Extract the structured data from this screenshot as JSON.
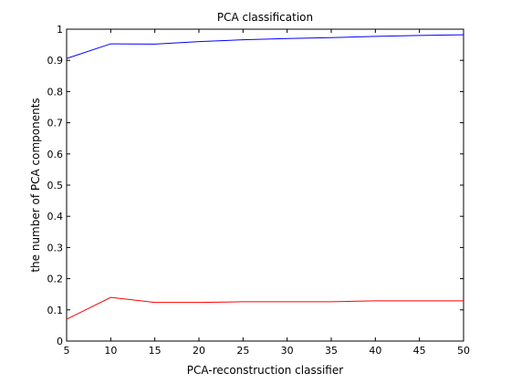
{
  "chart_data": {
    "type": "line",
    "title": "PCA classification",
    "xlabel": "PCA-reconstruction classifier",
    "ylabel": "the number of PCA components",
    "xlim": [
      5,
      50
    ],
    "ylim": [
      0,
      1
    ],
    "x_ticks": [
      "5",
      "10",
      "15",
      "20",
      "25",
      "30",
      "35",
      "40",
      "45",
      "50"
    ],
    "y_ticks": [
      "0",
      "0.1",
      "0.2",
      "0.3",
      "0.4",
      "0.5",
      "0.6",
      "0.7",
      "0.8",
      "0.9",
      "1"
    ],
    "grid": false,
    "series": [
      {
        "color": "#0000ff",
        "points": [
          [
            5,
            0.906
          ],
          [
            10,
            0.953
          ],
          [
            15,
            0.952
          ],
          [
            20,
            0.96
          ],
          [
            25,
            0.966
          ],
          [
            30,
            0.97
          ],
          [
            35,
            0.973
          ],
          [
            40,
            0.977
          ],
          [
            45,
            0.98
          ],
          [
            50,
            0.982
          ]
        ]
      },
      {
        "color": "#ff0000",
        "points": [
          [
            5,
            0.07
          ],
          [
            10,
            0.14
          ],
          [
            15,
            0.124
          ],
          [
            20,
            0.124
          ],
          [
            25,
            0.126
          ],
          [
            30,
            0.126
          ],
          [
            35,
            0.126
          ],
          [
            40,
            0.129
          ],
          [
            45,
            0.129
          ],
          [
            50,
            0.129
          ]
        ]
      }
    ]
  }
}
